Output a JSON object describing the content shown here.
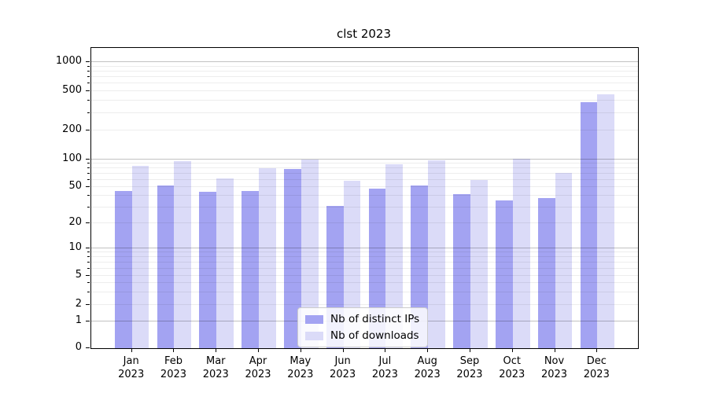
{
  "title": "clst 2023",
  "chart_data": {
    "type": "bar",
    "title": "clst 2023",
    "categories": [
      "Jan",
      "Feb",
      "Mar",
      "Apr",
      "May",
      "Jun",
      "Jul",
      "Aug",
      "Sep",
      "Oct",
      "Nov",
      "Dec"
    ],
    "year_label": "2023",
    "series": [
      {
        "name": "Nb of distinct IPs",
        "color": "#a3a3f2",
        "values": [
          45,
          52,
          44,
          45,
          78,
          31,
          48,
          52,
          42,
          36,
          38,
          385
        ]
      },
      {
        "name": "Nb of downloads",
        "color": "#dbdbf8",
        "values": [
          85,
          95,
          62,
          80,
          100,
          58,
          88,
          98,
          60,
          101,
          71,
          465
        ]
      }
    ],
    "xlabel": "",
    "ylabel": "",
    "yscale": "symlog",
    "yticks": [
      0,
      1,
      2,
      5,
      10,
      20,
      50,
      100,
      200,
      500,
      1000
    ],
    "ylim": [
      0,
      1200
    ],
    "grid": true,
    "legend_position": "lower-center"
  }
}
